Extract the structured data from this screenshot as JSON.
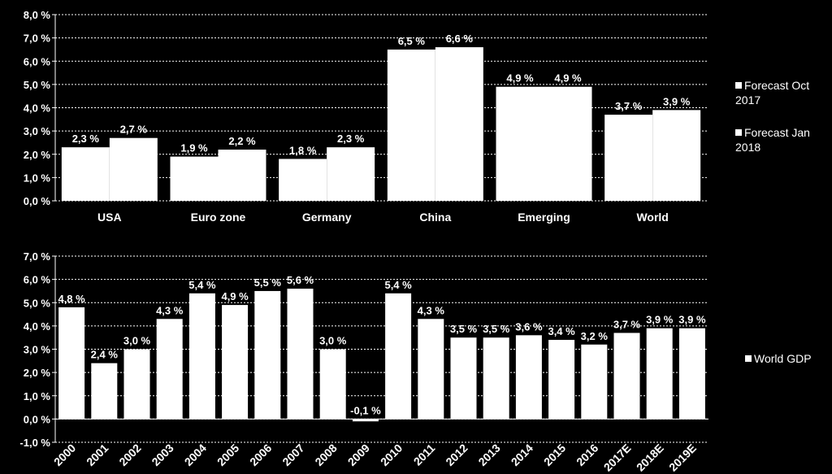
{
  "chart_data": [
    {
      "type": "bar",
      "categories": [
        "USA",
        "Euro zone",
        "Germany",
        "China",
        "Emerging",
        "World"
      ],
      "series": [
        {
          "name": "Forecast Oct 2017",
          "values": [
            2.3,
            1.9,
            1.8,
            6.5,
            4.9,
            3.7
          ],
          "labels": [
            "2,3 %",
            "1,9 %",
            "1,8 %",
            "6,5 %",
            "4,9 %",
            "3,7 %"
          ]
        },
        {
          "name": "Forecast Jan 2018",
          "values": [
            2.7,
            2.2,
            2.3,
            6.6,
            4.9,
            3.9
          ],
          "labels": [
            "2,7 %",
            "2,2 %",
            "2,3 %",
            "6,6 %",
            "4,9 %",
            "3,9 %"
          ]
        }
      ],
      "ylim": [
        0,
        8
      ],
      "yticks": [
        "0,0 %",
        "1,0 %",
        "2,0 %",
        "3,0 %",
        "4,0 %",
        "5,0 %",
        "6,0 %",
        "7,0 %",
        "8,0 %"
      ],
      "grid": true,
      "legend": "right"
    },
    {
      "type": "bar",
      "categories": [
        "2000",
        "2001",
        "2002",
        "2003",
        "2004",
        "2005",
        "2006",
        "2007",
        "2008",
        "2009",
        "2010",
        "2011",
        "2012",
        "2013",
        "2014",
        "2015",
        "2016",
        "2017E",
        "2018E",
        "2019E"
      ],
      "series": [
        {
          "name": "World GDP",
          "values": [
            4.8,
            2.4,
            3.0,
            4.3,
            5.4,
            4.9,
            5.5,
            5.6,
            3.0,
            -0.1,
            5.4,
            4.3,
            3.5,
            3.5,
            3.6,
            3.4,
            3.2,
            3.7,
            3.9,
            3.9
          ],
          "labels": [
            "4,8 %",
            "2,4 %",
            "3,0 %",
            "4,3 %",
            "5,4 %",
            "4,9 %",
            "5,5 %",
            "5,6 %",
            "3,0 %",
            "-0,1 %",
            "5,4 %",
            "4,3 %",
            "3,5 %",
            "3,5 %",
            "3,6 %",
            "3,4 %",
            "3,2 %",
            "3,7 %",
            "3,9 %",
            "3,9 %"
          ]
        }
      ],
      "ylim": [
        -1,
        7
      ],
      "yticks": [
        "-1,0 %",
        "0,0 %",
        "1,0 %",
        "2,0 %",
        "3,0 %",
        "4,0 %",
        "5,0 %",
        "6,0 %",
        "7,0 %"
      ],
      "grid": true,
      "legend": "right"
    }
  ],
  "colors": {
    "background": "#000000",
    "bars": "#ffffff",
    "text": "#ffffff"
  }
}
